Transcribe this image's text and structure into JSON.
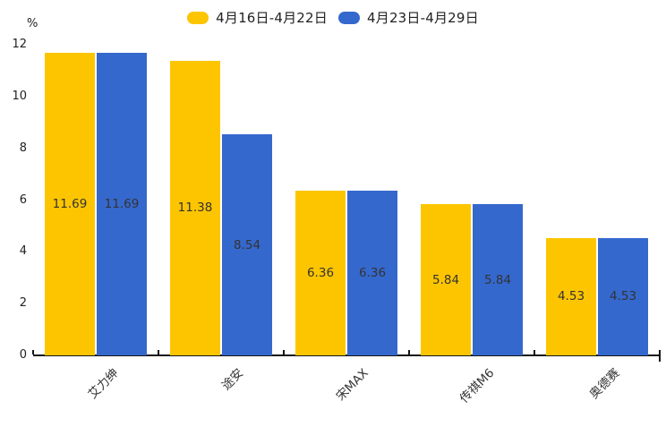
{
  "chart_data": {
    "type": "bar",
    "title": "",
    "unit_label": "%",
    "categories": [
      "艾力绅",
      "途安",
      "宋MAX",
      "传祺M6",
      "奥德赛"
    ],
    "series": [
      {
        "name": "4月16日-4月22日",
        "color": "#FDC500",
        "values": [
          11.69,
          11.38,
          6.36,
          5.84,
          4.53
        ]
      },
      {
        "name": "4月23日-4月29日",
        "color": "#3568CD",
        "values": [
          11.69,
          8.54,
          6.36,
          5.84,
          4.53
        ]
      }
    ],
    "ylim": [
      0,
      12
    ],
    "yticks": [
      0,
      2,
      4,
      6,
      8,
      10,
      12
    ],
    "grid": false,
    "legend_position": "top",
    "value_labels": true,
    "value_label_position": "center-of-bar",
    "category_label_rotation_deg": -45
  },
  "colors": {
    "axis": "#141414",
    "value_label_text": "#333333",
    "tick_label_text": "#222222",
    "background": "#ffffff"
  }
}
